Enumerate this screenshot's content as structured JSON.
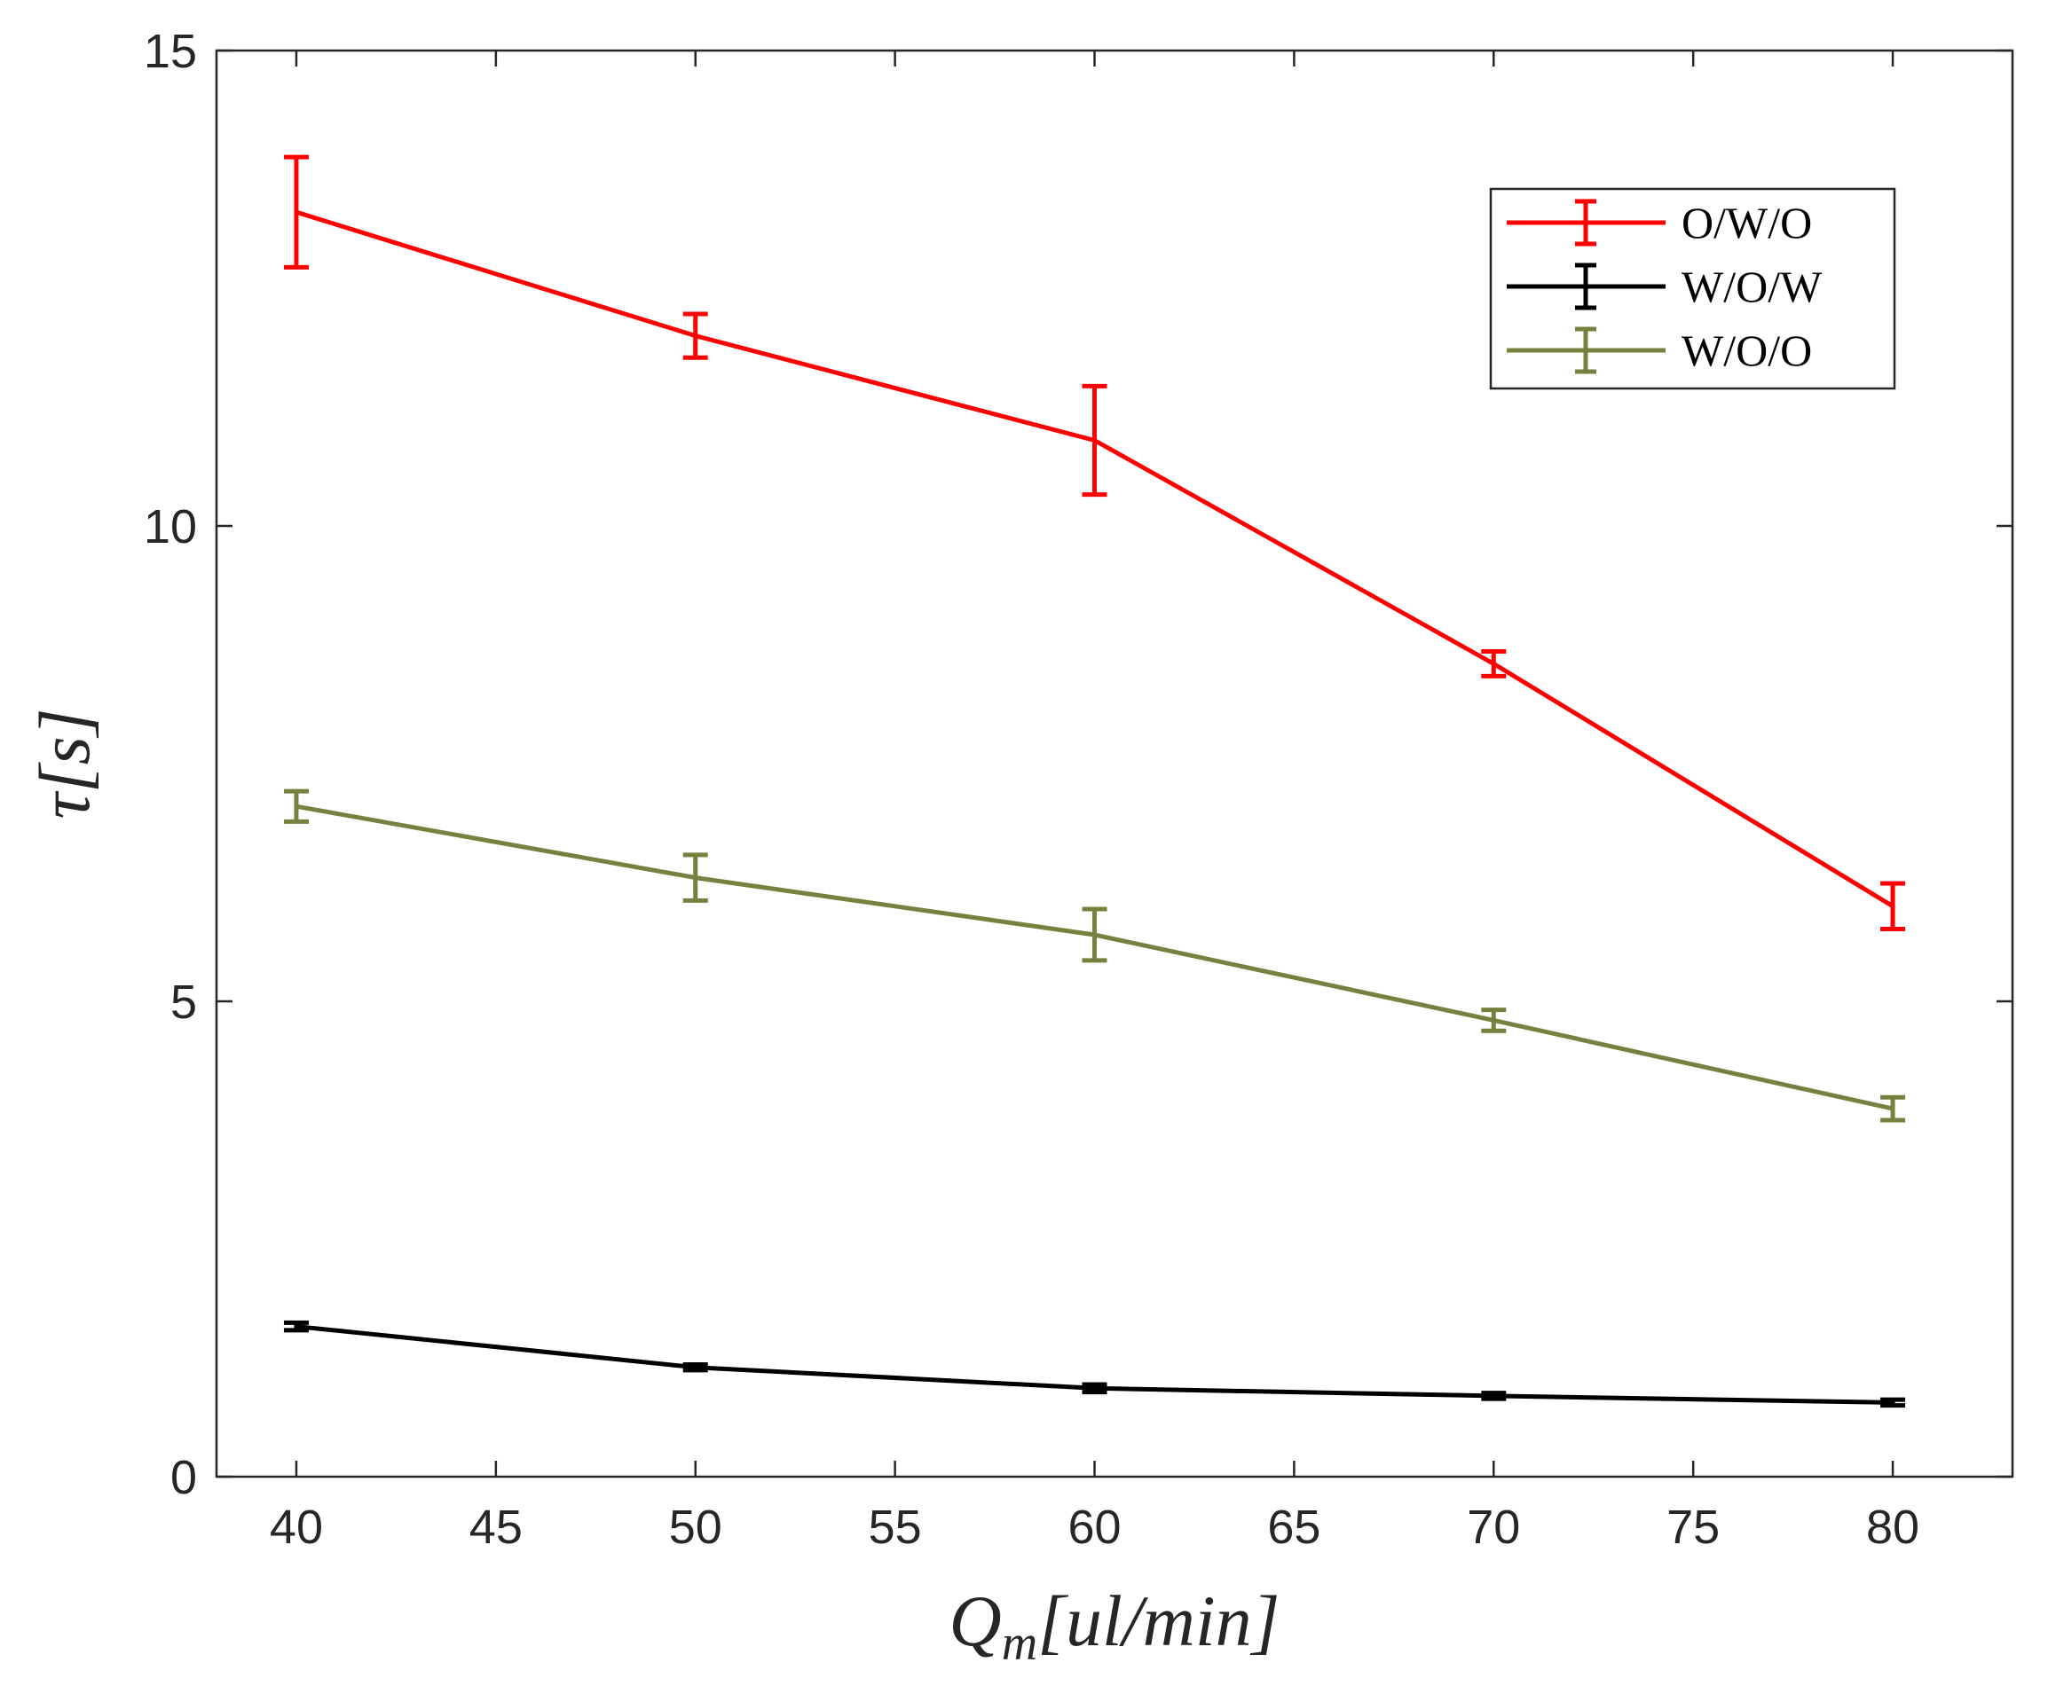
{
  "chart_data": {
    "type": "line",
    "title": "",
    "xlabel": "Q_m[ul/min]",
    "ylabel": "τ[s]",
    "xlabel_parts": {
      "main": "Q",
      "sub": "m",
      "rest": "[ul/min]"
    },
    "ylabel_parts": {
      "main": "τ",
      "rest": "[s]"
    },
    "xlim": [
      38,
      83
    ],
    "ylim": [
      0,
      15
    ],
    "xticks": [
      40,
      45,
      50,
      55,
      60,
      65,
      70,
      75,
      80
    ],
    "yticks": [
      0,
      5,
      10,
      15
    ],
    "grid": false,
    "legend_position": "top-right",
    "x": [
      40,
      50,
      60,
      70,
      80
    ],
    "series": [
      {
        "name": "O/W/O",
        "color": "#ff0000",
        "values": [
          13.3,
          12.0,
          10.9,
          8.55,
          6.0
        ],
        "errors": [
          0.58,
          0.23,
          0.57,
          0.13,
          0.24
        ]
      },
      {
        "name": "W/O/W",
        "color": "#000000",
        "values": [
          1.58,
          1.15,
          0.93,
          0.85,
          0.78
        ],
        "errors": [
          0.04,
          0.03,
          0.04,
          0.03,
          0.03
        ]
      },
      {
        "name": "W/O/O",
        "color": "#77813f",
        "values": [
          7.05,
          6.3,
          5.7,
          4.8,
          3.87
        ],
        "errors": [
          0.16,
          0.24,
          0.27,
          0.11,
          0.12
        ]
      }
    ]
  }
}
